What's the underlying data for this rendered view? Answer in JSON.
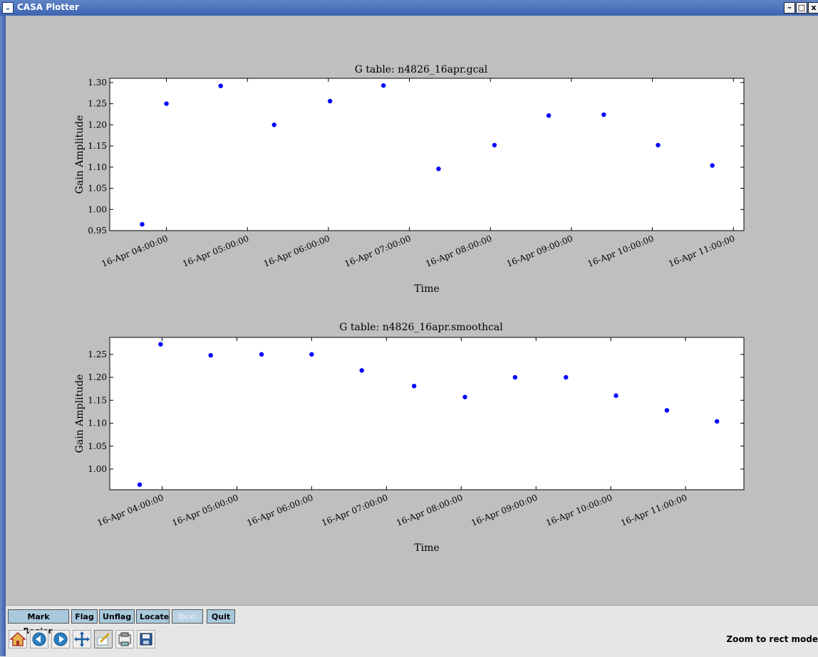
{
  "window": {
    "title": "CASA Plotter",
    "menu_glyph": "⌄",
    "min_glyph": "–",
    "max_glyph": "□",
    "close_glyph": "x"
  },
  "plots": [
    {
      "title": "G table: n4826_16apr.gcal",
      "xlabel": "Time",
      "ylabel": "Gain Amplitude",
      "yticks": [
        "0.95",
        "1.00",
        "1.05",
        "1.10",
        "1.15",
        "1.20",
        "1.25",
        "1.30"
      ],
      "xticks": [
        "16-Apr 04:00:00",
        "16-Apr 05:00:00",
        "16-Apr 06:00:00",
        "16-Apr 07:00:00",
        "16-Apr 08:00:00",
        "16-Apr 09:00:00",
        "16-Apr 10:00:00",
        "16-Apr 11:00:00"
      ]
    },
    {
      "title": "G table: n4826_16apr.smoothcal",
      "xlabel": "Time",
      "ylabel": "Gain Amplitude",
      "yticks": [
        "1.00",
        "1.05",
        "1.10",
        "1.15",
        "1.20",
        "1.25"
      ],
      "xticks": [
        "16-Apr 04:00:00",
        "16-Apr 05:00:00",
        "16-Apr 06:00:00",
        "16-Apr 07:00:00",
        "16-Apr 08:00:00",
        "16-Apr 09:00:00",
        "16-Apr 10:00:00",
        "16-Apr 11:00:00"
      ]
    }
  ],
  "chart_data": [
    {
      "type": "scatter",
      "title": "G table: n4826_16apr.gcal",
      "xlabel": "Time",
      "ylabel": "Gain Amplitude",
      "color": "#0000ff",
      "x_hours": [
        3.7,
        4.0,
        4.67,
        5.33,
        6.02,
        6.68,
        7.36,
        8.05,
        8.72,
        9.4,
        10.07,
        10.74
      ],
      "x_display": [
        "16-Apr 03:42",
        "16-Apr 04:00",
        "16-Apr 04:40",
        "16-Apr 05:20",
        "16-Apr 06:01",
        "16-Apr 06:41",
        "16-Apr 07:22",
        "16-Apr 08:03",
        "16-Apr 08:43",
        "16-Apr 09:24",
        "16-Apr 10:04",
        "16-Apr 10:44"
      ],
      "values": [
        0.965,
        1.25,
        1.292,
        1.2,
        1.256,
        1.293,
        1.096,
        1.152,
        1.222,
        1.224,
        1.152,
        1.104
      ],
      "xlim": [
        3.3,
        11.13
      ],
      "ylim": [
        0.95,
        1.31
      ]
    },
    {
      "type": "scatter",
      "title": "G table: n4826_16apr.smoothcal",
      "xlabel": "Time",
      "ylabel": "Gain Amplitude",
      "color": "#0000ff",
      "x_hours": [
        3.7,
        3.98,
        4.65,
        5.33,
        6.0,
        6.67,
        7.37,
        8.05,
        8.72,
        9.4,
        10.07,
        10.75,
        11.42
      ],
      "x_display": [
        "16-Apr 03:42",
        "16-Apr 03:59",
        "16-Apr 04:39",
        "16-Apr 05:20",
        "16-Apr 06:00",
        "16-Apr 06:40",
        "16-Apr 07:22",
        "16-Apr 08:03",
        "16-Apr 08:43",
        "16-Apr 09:24",
        "16-Apr 10:04",
        "16-Apr 10:45",
        "16-Apr 11:25"
      ],
      "values": [
        0.966,
        1.272,
        1.248,
        1.25,
        1.25,
        1.215,
        1.181,
        1.157,
        1.2,
        1.2,
        1.16,
        1.128,
        1.104
      ],
      "xlim": [
        3.3,
        11.78
      ],
      "ylim": [
        0.955,
        1.287
      ]
    }
  ],
  "toolbar": {
    "buttons": [
      {
        "label": "Mark Region",
        "enabled": true
      },
      {
        "label": "Flag",
        "enabled": true
      },
      {
        "label": "Unflag",
        "enabled": true
      },
      {
        "label": "Locate",
        "enabled": true
      },
      {
        "label": "Next",
        "enabled": false
      },
      {
        "label": "Quit",
        "enabled": true
      }
    ],
    "icons": [
      "home-icon",
      "back-icon",
      "forward-icon",
      "pan-icon",
      "zoom-rect-icon",
      "subplots-icon",
      "save-icon"
    ],
    "status": "Zoom to rect mode"
  }
}
